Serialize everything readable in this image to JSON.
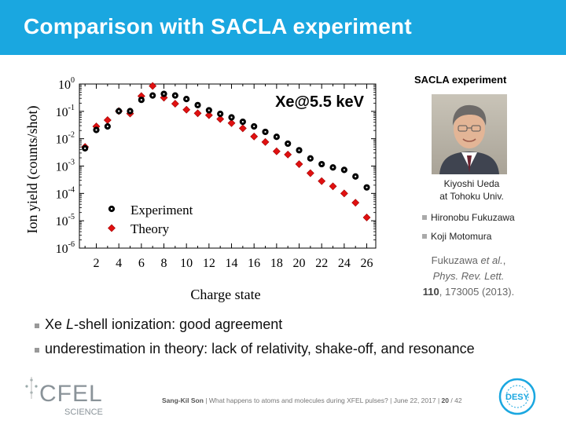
{
  "slide": {
    "title": "Comparison with SACLA experiment"
  },
  "side": {
    "heading": "SACLA experiment",
    "photo_person": "Kiyoshi Ueda",
    "photo_affiliation": "at Tohoku Univ.",
    "coauthors": [
      "Hironobu Fukuzawa",
      "Koji Motomura"
    ],
    "ref_authors": "Fukuzawa",
    "ref_etal": "et al.",
    "ref_journal": "Phys. Rev. Lett.",
    "ref_volume": "110",
    "ref_rest": ", 173005 (2013)."
  },
  "bullets": [
    {
      "pre": "Xe ",
      "em": "L",
      "post": "-shell ionization: good agreement"
    },
    {
      "text": "underestimation in theory: lack of relativity, shake-off, and resonance"
    }
  ],
  "footer": {
    "author": "Sang-Kil Son",
    "talk": "What happens to atoms and molecules during XFEL pulses?",
    "date": "June 22, 2017",
    "page": "20",
    "total": "/ 42"
  },
  "logos": {
    "cfel_main": "CFEL",
    "cfel_sub": "SCIENCE",
    "desy": "DESY"
  },
  "chart_data": {
    "type": "scatter",
    "annotation": "Xe@5.5 keV",
    "xlabel": "Charge state",
    "ylabel": "Ion yield (counts/shot)",
    "xlim": [
      0.5,
      26.8
    ],
    "ylim_log10": [
      -6,
      0
    ],
    "y_scale": "log",
    "x_ticks": [
      2,
      4,
      6,
      8,
      10,
      12,
      14,
      16,
      18,
      20,
      22,
      24,
      26
    ],
    "y_tick_exponents": [
      0,
      -1,
      -2,
      -3,
      -4,
      -5,
      -6
    ],
    "legend_position": "bottom-left",
    "series": [
      {
        "name": "Experiment",
        "marker": "circle",
        "color": "#000000",
        "x": [
          1,
          2,
          3,
          4,
          5,
          6,
          7,
          8,
          9,
          10,
          11,
          12,
          13,
          14,
          15,
          16,
          17,
          18,
          19,
          20,
          21,
          22,
          23,
          24,
          25,
          26
        ],
        "y_log10": [
          -2.35,
          -1.68,
          -1.55,
          -0.99,
          -0.99,
          -0.58,
          -0.42,
          -0.36,
          -0.42,
          -0.55,
          -0.77,
          -0.96,
          -1.09,
          -1.22,
          -1.38,
          -1.55,
          -1.75,
          -1.93,
          -2.18,
          -2.42,
          -2.72,
          -2.93,
          -3.05,
          -3.14,
          -3.38,
          -3.78
        ]
      },
      {
        "name": "Theory",
        "marker": "diamond",
        "color": "#e01010",
        "x": [
          1,
          2,
          3,
          4,
          5,
          6,
          7,
          8,
          9,
          10,
          11,
          12,
          13,
          14,
          15,
          16,
          17,
          18,
          19,
          20,
          21,
          22,
          23,
          24,
          25,
          26
        ],
        "y_log10": [
          -2.3,
          -1.55,
          -1.32,
          -0.99,
          -1.08,
          -0.44,
          -0.07,
          -0.5,
          -0.72,
          -0.94,
          -1.07,
          -1.14,
          -1.28,
          -1.43,
          -1.62,
          -1.92,
          -2.12,
          -2.46,
          -2.58,
          -2.93,
          -3.26,
          -3.55,
          -3.74,
          -4.0,
          -4.34,
          -4.88
        ]
      }
    ]
  }
}
